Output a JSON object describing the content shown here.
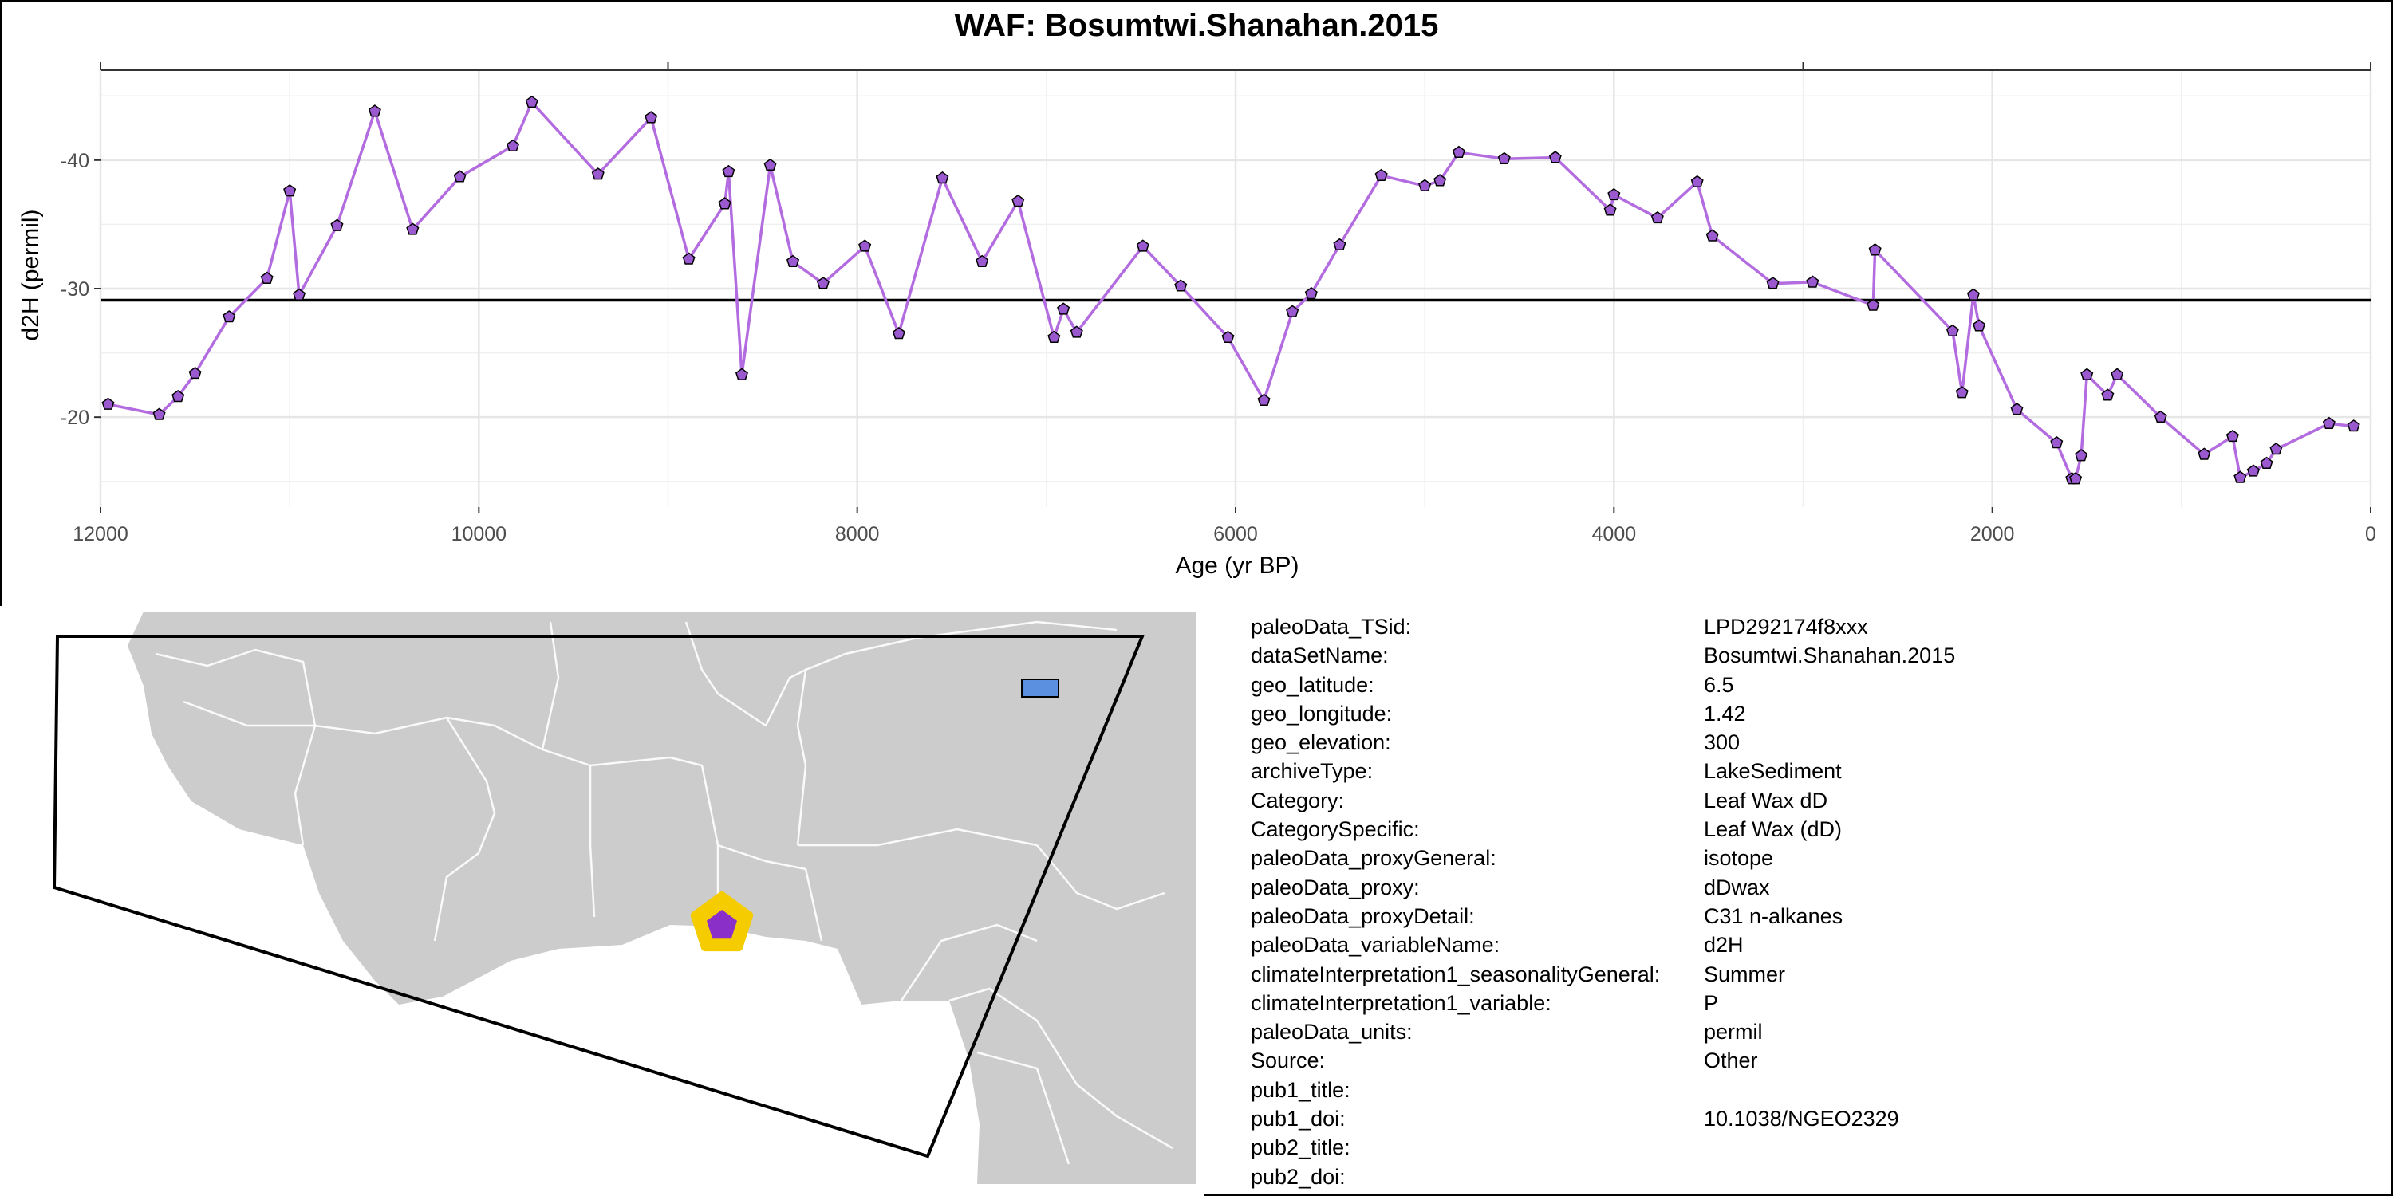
{
  "chart_data": {
    "type": "line",
    "title": "WAF: Bosumtwi.Shanahan.2015",
    "xlabel": "Age (yr BP)",
    "ylabel": "d2H (permil)",
    "xlim": [
      12000,
      0
    ],
    "ylim": [
      -13,
      -47
    ],
    "x_reversed": true,
    "y_reversed": true,
    "x_ticks": [
      12000,
      10000,
      8000,
      6000,
      4000,
      2000,
      0
    ],
    "y_ticks": [
      -40,
      -30,
      -20
    ],
    "reference_line_y": -29.1,
    "grid": true,
    "legend": "none",
    "line_color": "#b36be0",
    "marker_fill": "#9b59d0",
    "series": [
      {
        "x": [
          11960,
          11690,
          11590,
          11500,
          11320,
          11120,
          11000,
          10950,
          10750,
          10550,
          10350,
          10100,
          9820,
          9720,
          9370,
          9090,
          8890,
          8700,
          8680,
          8610,
          8460,
          8340,
          8180,
          7960,
          7780,
          7550,
          7340,
          7150,
          6960,
          6910,
          6840,
          6490,
          6290,
          6040,
          5850,
          5700,
          5600,
          5450,
          5230,
          5000,
          4920,
          4820,
          4580,
          4310,
          4020,
          4000,
          3770,
          3560,
          3480,
          3160,
          2950,
          2630,
          2620,
          2210,
          2160,
          2100,
          2070,
          1870,
          1660,
          1580,
          1560,
          1530,
          1500,
          1390,
          1340,
          1110,
          880,
          730,
          690,
          620,
          550,
          500,
          220,
          90
        ],
        "y": [
          -21.0,
          -20.2,
          -21.6,
          -23.4,
          -27.8,
          -30.8,
          -37.6,
          -29.5,
          -34.9,
          -43.8,
          -34.6,
          -38.7,
          -41.1,
          -44.5,
          -38.9,
          -43.3,
          -32.3,
          -36.6,
          -39.1,
          -23.3,
          -39.6,
          -32.1,
          -30.4,
          -33.3,
          -26.5,
          -38.6,
          -32.1,
          -36.8,
          -26.2,
          -28.4,
          -26.6,
          -33.3,
          -30.2,
          -26.2,
          -21.3,
          -28.2,
          -29.6,
          -33.4,
          -38.8,
          -38.0,
          -38.4,
          -40.6,
          -40.1,
          -40.2,
          -36.1,
          -37.3,
          -35.5,
          -38.3,
          -34.1,
          -30.4,
          -30.5,
          -28.7,
          -33.0,
          -26.7,
          -21.9,
          -29.5,
          -27.1,
          -20.6,
          -18.0,
          -15.2,
          -15.2,
          -17.0,
          -23.3,
          -21.7,
          -23.3,
          -20.0,
          -17.1,
          -18.5,
          -15.3,
          -15.8,
          -16.4,
          -17.5,
          -19.5,
          -19.3
        ]
      }
    ]
  },
  "map": {
    "marker_fill": "#8a2fc8",
    "marker_halo": "#f5cc00",
    "box_fill": "#5b8fdf",
    "land_color": "#cccccc",
    "outline_color": "#000000"
  },
  "metadata": [
    {
      "key": "paleoData_TSid:",
      "value": "LPD292174f8xxx"
    },
    {
      "key": "dataSetName:",
      "value": "Bosumtwi.Shanahan.2015"
    },
    {
      "key": "geo_latitude:",
      "value": "6.5"
    },
    {
      "key": "geo_longitude:",
      "value": "1.42"
    },
    {
      "key": "geo_elevation:",
      "value": "300"
    },
    {
      "key": "archiveType:",
      "value": "LakeSediment"
    },
    {
      "key": "Category:",
      "value": "Leaf Wax dD"
    },
    {
      "key": "CategorySpecific:",
      "value": "Leaf Wax (dD)"
    },
    {
      "key": "paleoData_proxyGeneral:",
      "value": "isotope"
    },
    {
      "key": "paleoData_proxy:",
      "value": "dDwax"
    },
    {
      "key": "paleoData_proxyDetail:",
      "value": "C31 n-alkanes"
    },
    {
      "key": "paleoData_variableName:",
      "value": "d2H"
    },
    {
      "key": "climateInterpretation1_seasonalityGeneral:",
      "value": "Summer"
    },
    {
      "key": "climateInterpretation1_variable:",
      "value": "P"
    },
    {
      "key": "paleoData_units:",
      "value": "permil"
    },
    {
      "key": "Source:",
      "value": "Other"
    },
    {
      "key": "pub1_title:",
      "value": ""
    },
    {
      "key": "pub1_doi:",
      "value": "10.1038/NGEO2329"
    },
    {
      "key": "pub2_title:",
      "value": ""
    },
    {
      "key": "pub2_doi:",
      "value": ""
    }
  ]
}
